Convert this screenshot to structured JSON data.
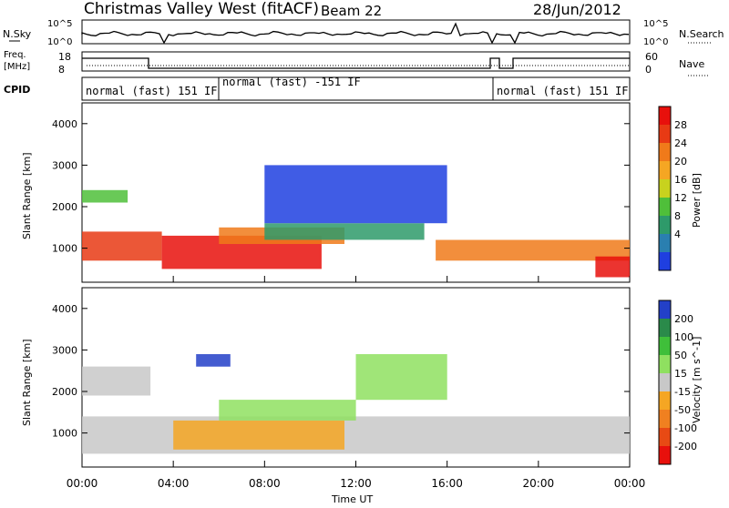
{
  "header": {
    "title": "Christmas Valley West (fitACF)",
    "beam": "Beam 22",
    "date": "28/Jun/2012"
  },
  "strips": {
    "noise_left_label": "N.Sky",
    "noise_right_label": "N.Search",
    "noise_ticks_left": [
      "10^5",
      "10^0"
    ],
    "noise_ticks_right": [
      "10^5",
      "10^0"
    ],
    "freq_label_line1": "Freq.",
    "freq_label_line2": "[MHz]",
    "freq_ticks": [
      "18",
      "8"
    ],
    "nave_label": "Nave",
    "nave_ticks": [
      "60",
      "0"
    ],
    "cpid_label": "CPID",
    "cpid_segments": [
      "normal (fast) 151 IF",
      "normal (fast) -151 IF",
      "normal (fast) 151 IF"
    ]
  },
  "chart_data": [
    {
      "type": "heatmap",
      "title": "",
      "xlabel": "Time UT",
      "ylabel": "Slant Range [km]",
      "colorbar_label": "Power [dB]",
      "xlim": [
        "00:00",
        "24:00"
      ],
      "ylim": [
        180,
        4500
      ],
      "x_ticks": [
        "00:00",
        "04:00",
        "08:00",
        "12:00",
        "16:00",
        "20:00",
        "00:00"
      ],
      "y_ticks": [
        1000,
        2000,
        3000,
        4000
      ],
      "colorbar_ticks": [
        4,
        8,
        12,
        16,
        20,
        24,
        28
      ],
      "colorbar_colors": [
        "#1f3fe0",
        "#2a7fb0",
        "#2e9a6a",
        "#4fbf3a",
        "#c8d21e",
        "#f5a623",
        "#f07a1a",
        "#e83a14",
        "#e8100c"
      ],
      "regions": [
        {
          "t_start": 0.0,
          "t_end": 3.5,
          "r_low": 700,
          "r_high": 1400,
          "level": 24
        },
        {
          "t_start": 3.5,
          "t_end": 10.5,
          "r_low": 500,
          "r_high": 1300,
          "level": 28
        },
        {
          "t_start": 6.0,
          "t_end": 11.5,
          "r_low": 1100,
          "r_high": 1500,
          "level": 20
        },
        {
          "t_start": 0.0,
          "t_end": 2.0,
          "r_low": 2100,
          "r_high": 2400,
          "level": 12
        },
        {
          "t_start": 8.0,
          "t_end": 15.0,
          "r_low": 1200,
          "r_high": 1600,
          "level": 10
        },
        {
          "t_start": 15.5,
          "t_end": 24.0,
          "r_low": 700,
          "r_high": 1200,
          "level": 20
        },
        {
          "t_start": 22.5,
          "t_end": 24.0,
          "r_low": 300,
          "r_high": 800,
          "level": 28
        },
        {
          "t_start": 8.0,
          "t_end": 16.0,
          "r_low": 1600,
          "r_high": 3000,
          "level": 6
        }
      ]
    },
    {
      "type": "heatmap",
      "title": "",
      "xlabel": "Time UT",
      "ylabel": "Slant Range [km]",
      "colorbar_label": "Velocity [m s^-1]",
      "xlim": [
        "00:00",
        "24:00"
      ],
      "ylim": [
        180,
        4500
      ],
      "x_ticks": [
        "00:00",
        "04:00",
        "08:00",
        "12:00",
        "16:00",
        "20:00",
        "00:00"
      ],
      "y_ticks": [
        1000,
        2000,
        3000,
        4000
      ],
      "colorbar_ticks": [
        200,
        100,
        50,
        15,
        -15,
        -50,
        -100,
        -200
      ],
      "colorbar_colors": [
        "#2340c8",
        "#2a8a4a",
        "#3fbf3a",
        "#8fe060",
        "#c8c8c8",
        "#f5a623",
        "#f08020",
        "#e84a14",
        "#e8100c"
      ],
      "regions": [
        {
          "t_start": 0.0,
          "t_end": 24.0,
          "r_low": 500,
          "r_high": 1400,
          "level": 0
        },
        {
          "t_start": 0.0,
          "t_end": 3.0,
          "r_low": 1900,
          "r_high": 2600,
          "level": 0
        },
        {
          "t_start": 4.0,
          "t_end": 11.5,
          "r_low": 600,
          "r_high": 1300,
          "level": -60
        },
        {
          "t_start": 6.0,
          "t_end": 12.0,
          "r_low": 1300,
          "r_high": 1800,
          "level": 60
        },
        {
          "t_start": 5.0,
          "t_end": 6.5,
          "r_low": 2600,
          "r_high": 2900,
          "level": 200
        },
        {
          "t_start": 12.0,
          "t_end": 16.0,
          "r_low": 1800,
          "r_high": 2900,
          "level": 40
        }
      ]
    }
  ]
}
